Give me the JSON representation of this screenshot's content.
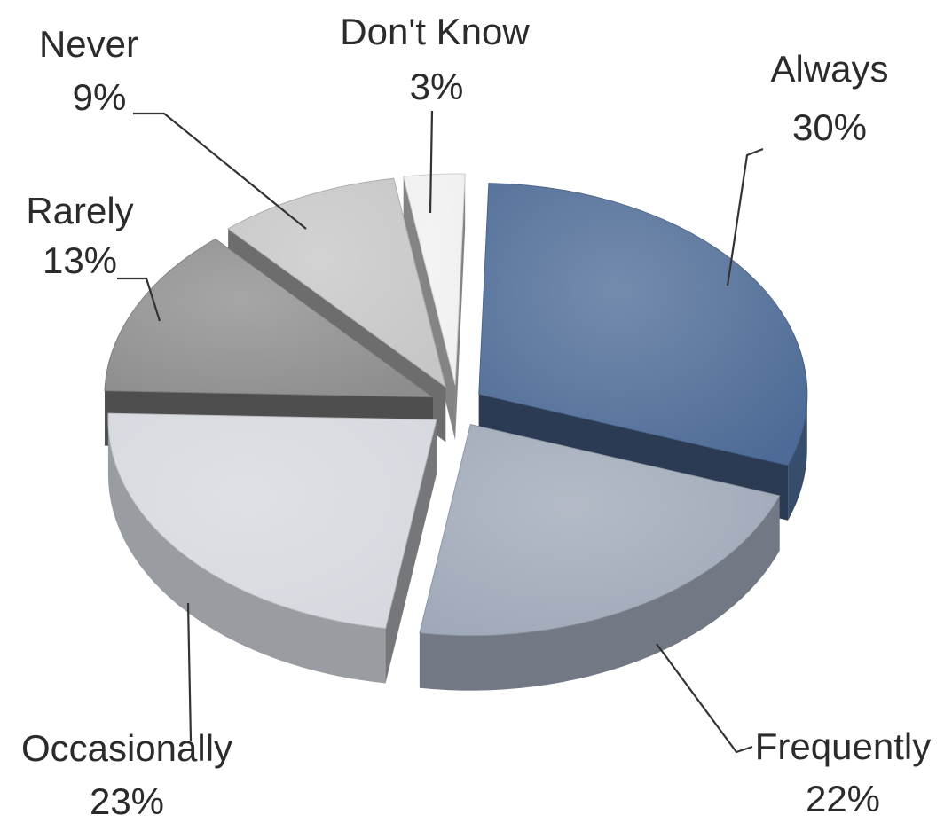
{
  "chart_data": {
    "type": "pie",
    "title": "",
    "legend": "none",
    "slices": [
      {
        "label": "Always",
        "value": 30,
        "display": "30%",
        "color": "#4d6b96"
      },
      {
        "label": "Frequently",
        "value": 22,
        "display": "22%",
        "color": "#9fa8b8"
      },
      {
        "label": "Occasionally",
        "value": 23,
        "display": "23%",
        "color": "#d5d8de"
      },
      {
        "label": "Rarely",
        "value": 13,
        "display": "13%",
        "color": "#8d8d8d"
      },
      {
        "label": "Never",
        "value": 9,
        "display": "9%",
        "color": "#c6c6c6"
      },
      {
        "label": "Don't Know",
        "value": 3,
        "display": "3%",
        "color": "#f0f0f0"
      }
    ]
  }
}
